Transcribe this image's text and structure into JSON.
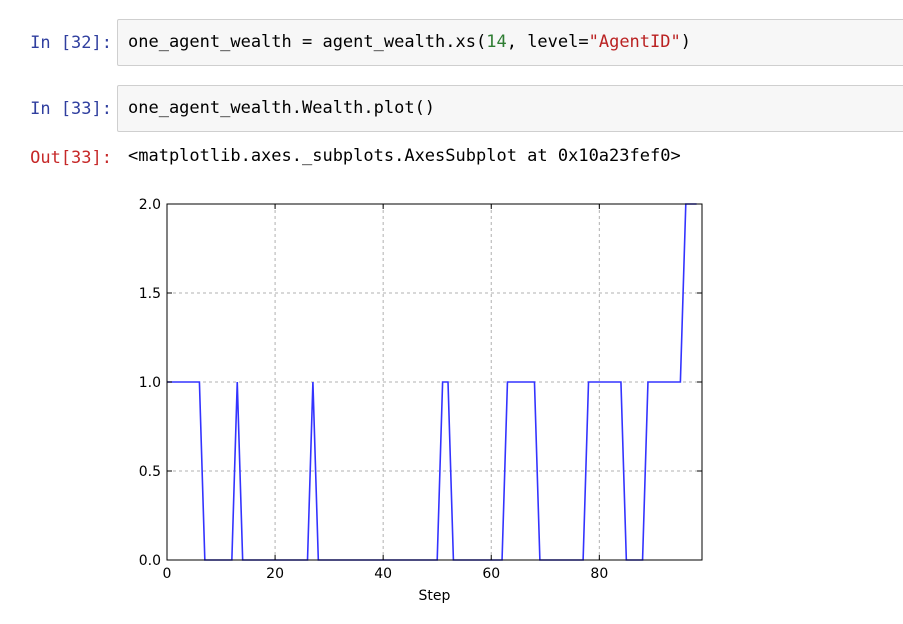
{
  "cells": [
    {
      "prompt": "In [32]:",
      "code": {
        "pre": "one_agent_wealth = agent_wealth.xs(",
        "num": "14",
        "mid": ", level=",
        "str": "\"AgentID\"",
        "post": ")"
      }
    },
    {
      "prompt": "In [33]:",
      "code": {
        "text": "one_agent_wealth.Wealth.plot()"
      },
      "out_prompt": "Out[33]:",
      "out_text": "<matplotlib.axes._subplots.AxesSubplot at 0x10a23fef0>"
    }
  ],
  "chart_data": {
    "type": "line",
    "xlabel": "Step",
    "ylabel": "",
    "xlim": [
      0,
      99
    ],
    "ylim": [
      0,
      2.0
    ],
    "xticks": [
      0,
      20,
      40,
      60,
      80
    ],
    "yticks": [
      0.0,
      0.5,
      1.0,
      1.5,
      2.0
    ],
    "yticklabels": [
      "0.0",
      "0.5",
      "1.0",
      "1.5",
      "2.0"
    ],
    "grid": true,
    "line_color": "#3333ff",
    "series": [
      {
        "x": [
          0,
          1,
          2,
          3,
          4,
          5,
          6,
          7,
          8,
          9,
          10,
          11,
          12,
          13,
          14,
          15,
          16,
          17,
          18,
          19,
          20,
          21,
          22,
          23,
          24,
          25,
          26,
          27,
          28,
          29,
          30,
          31,
          32,
          33,
          34,
          35,
          36,
          37,
          38,
          39,
          40,
          41,
          42,
          43,
          44,
          45,
          46,
          47,
          48,
          49,
          50,
          51,
          52,
          53,
          54,
          55,
          56,
          57,
          58,
          59,
          60,
          61,
          62,
          63,
          64,
          65,
          66,
          67,
          68,
          69,
          70,
          71,
          72,
          73,
          74,
          75,
          76,
          77,
          78,
          79,
          80,
          81,
          82,
          83,
          84,
          85,
          86,
          87,
          88,
          89,
          90,
          91,
          92,
          93,
          94,
          95,
          96,
          97,
          98
        ],
        "values": [
          1,
          1,
          1,
          1,
          1,
          1,
          1,
          0,
          0,
          0,
          0,
          0,
          0,
          1,
          0,
          0,
          0,
          0,
          0,
          0,
          0,
          0,
          0,
          0,
          0,
          0,
          0,
          1,
          0,
          0,
          0,
          0,
          0,
          0,
          0,
          0,
          0,
          0,
          0,
          0,
          0,
          0,
          0,
          0,
          0,
          0,
          0,
          0,
          0,
          0,
          0,
          1,
          1,
          0,
          0,
          0,
          0,
          0,
          0,
          0,
          0,
          0,
          0,
          1,
          1,
          1,
          1,
          1,
          1,
          0,
          0,
          0,
          0,
          0,
          0,
          0,
          0,
          0,
          1,
          1,
          1,
          1,
          1,
          1,
          1,
          0,
          0,
          0,
          0,
          1,
          1,
          1,
          1,
          1,
          1,
          1,
          2,
          2,
          2
        ]
      }
    ]
  }
}
